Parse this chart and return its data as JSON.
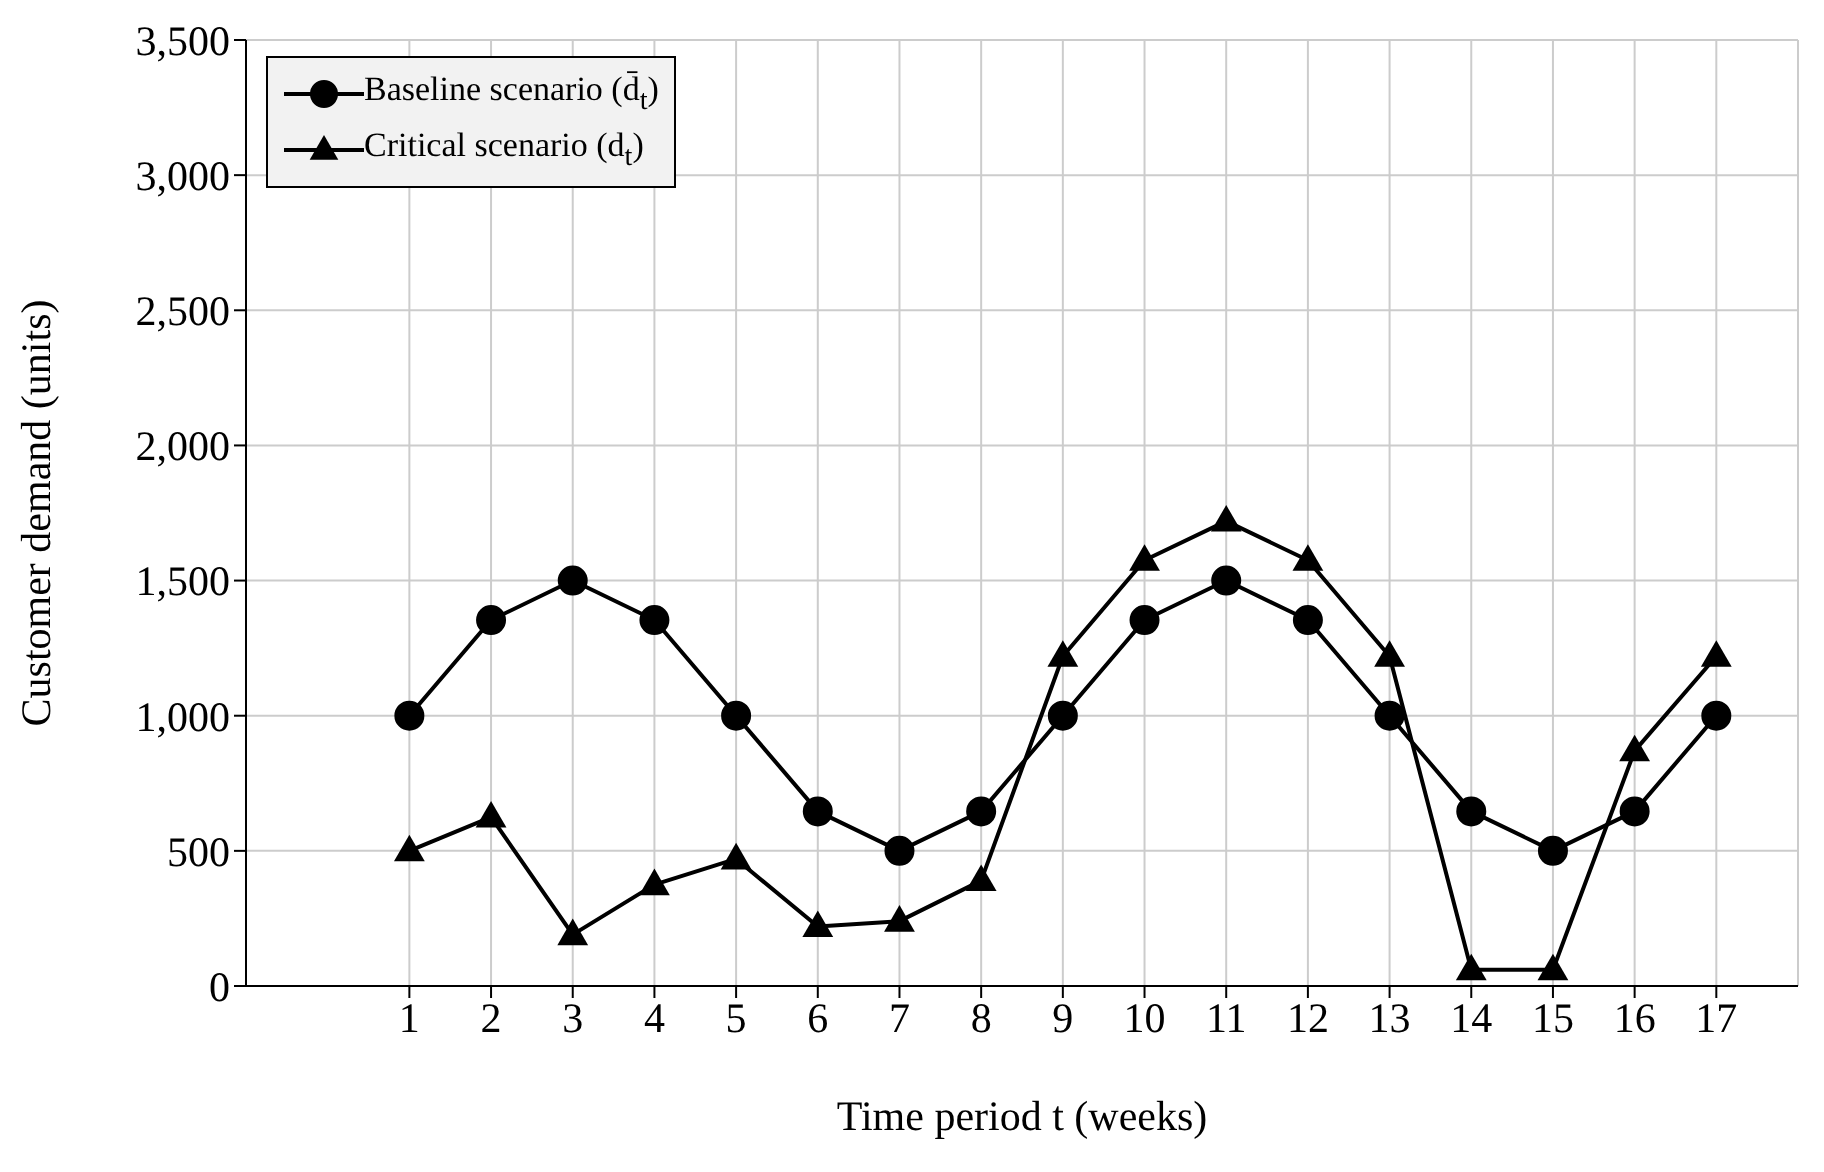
{
  "chart_data": {
    "type": "line",
    "xlabel": "Time period t (weeks)",
    "ylabel": "Customer demand (units)",
    "x": [
      1,
      2,
      3,
      4,
      5,
      6,
      7,
      8,
      9,
      10,
      11,
      12,
      13,
      14,
      15,
      16,
      17
    ],
    "series": [
      {
        "name": "Baseline scenario (d̄$_{t}$)",
        "color": "#000000",
        "marker": "circle",
        "values": [
          1000,
          1354,
          1500,
          1354,
          1000,
          646,
          500,
          646,
          1000,
          1354,
          1500,
          1354,
          1000,
          646,
          500,
          646,
          1000
        ]
      },
      {
        "name": "Critical scenario (d$_{t}$)",
        "color": "#000000",
        "marker": "triangle",
        "values": [
          500,
          625,
          190,
          375,
          470,
          220,
          240,
          390,
          1220,
          1575,
          1720,
          1575,
          1220,
          60,
          60,
          870,
          1220
        ]
      }
    ],
    "xlim": [
      -1,
      18
    ],
    "xticks": [
      1,
      2,
      3,
      4,
      5,
      6,
      7,
      8,
      9,
      10,
      11,
      12,
      13,
      14,
      15,
      16,
      17
    ],
    "ylim": [
      0,
      3500
    ],
    "yticks": [
      {
        "value": 0,
        "label": "0"
      },
      {
        "value": 500,
        "label": "500"
      },
      {
        "value": 1000,
        "label": "1,000"
      },
      {
        "value": 1500,
        "label": "1,500"
      },
      {
        "value": 2000,
        "label": "2,000"
      },
      {
        "value": 2500,
        "label": "2,500"
      },
      {
        "value": 3000,
        "label": "3,000"
      },
      {
        "value": 3500,
        "label": "3,500"
      }
    ],
    "grid": true,
    "legend": "top left",
    "line_style": "solid"
  }
}
